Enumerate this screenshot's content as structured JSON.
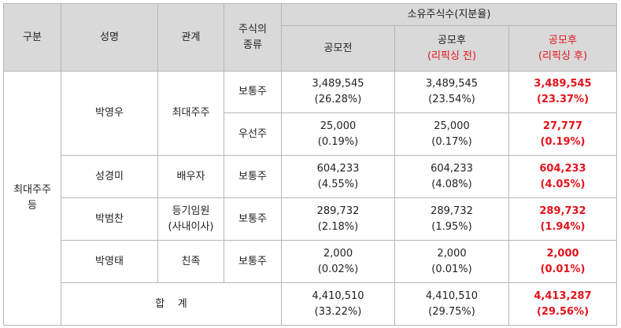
{
  "header": {
    "category": "구분",
    "name": "성명",
    "relation": "관계",
    "stock_type": "주식의\n종류",
    "holdings_title": "소유주식수(지분율)",
    "before_ipo": "공모전",
    "after_ipo": "공모후",
    "after_ipo_note": "(리픽싱 전)",
    "after_ipo_refix": "공모후",
    "after_ipo_refix_note": "(리픽싱 후)"
  },
  "group": "최대주주\n등",
  "rows": [
    {
      "name": "박영우",
      "relation": "최대주주",
      "type": "보통주",
      "pre_shares": "3,489,545",
      "pre_pct": "(26.28%)",
      "post_shares": "3,489,545",
      "post_pct": "(23.54%)",
      "refix_shares": "3,489,545",
      "refix_pct": "(23.37%)"
    },
    {
      "type": "우선주",
      "pre_shares": "25,000",
      "pre_pct": "(0.19%)",
      "post_shares": "25,000",
      "post_pct": "(0.17%)",
      "refix_shares": "27,777",
      "refix_pct": "(0.19%)"
    },
    {
      "name": "성경미",
      "relation": "배우자",
      "type": "보통주",
      "pre_shares": "604,233",
      "pre_pct": "(4.55%)",
      "post_shares": "604,233",
      "post_pct": "(4.08%)",
      "refix_shares": "604,233",
      "refix_pct": "(4.05%)"
    },
    {
      "name": "박범찬",
      "relation": "등기임원\n(사내이사)",
      "type": "보통주",
      "pre_shares": "289,732",
      "pre_pct": "(2.18%)",
      "post_shares": "289,732",
      "post_pct": "(1.95%)",
      "refix_shares": "289,732",
      "refix_pct": "(1.94%)"
    },
    {
      "name": "박영태",
      "relation": "친족",
      "type": "보통주",
      "pre_shares": "2,000",
      "pre_pct": "(0.02%)",
      "post_shares": "2,000",
      "post_pct": "(0.01%)",
      "refix_shares": "2,000",
      "refix_pct": "(0.01%)"
    }
  ],
  "total": {
    "label": "합    계",
    "pre_shares": "4,410,510",
    "pre_pct": "(33.22%)",
    "post_shares": "4,410,510",
    "post_pct": "(29.75%)",
    "refix_shares": "4,413,287",
    "refix_pct": "(29.56%)"
  }
}
